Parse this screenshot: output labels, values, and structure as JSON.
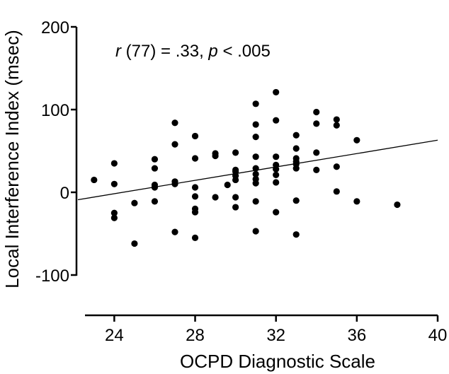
{
  "chart_data": {
    "type": "scatter",
    "title": "",
    "xlabel": "OCPD Diagnostic Scale",
    "ylabel": "Local Interference Index (msec)",
    "xlim": [
      22.2,
      40
    ],
    "ylim": [
      -100,
      200
    ],
    "x_ticks": [
      24,
      28,
      32,
      36,
      40
    ],
    "y_ticks": [
      -100,
      0,
      100,
      200
    ],
    "grid": false,
    "legend": "none",
    "annotation": {
      "r": "r",
      "df": "(77) = .33, ",
      "p": "p",
      "rest": " < .005"
    },
    "trend_line": {
      "x": [
        22.2,
        40
      ],
      "y": [
        -9,
        63
      ]
    },
    "marker_color": "#000000",
    "series": [
      {
        "x": [
          23,
          24,
          24,
          24,
          24,
          25,
          25,
          26,
          26,
          26,
          26,
          26,
          27,
          27,
          27,
          27,
          27,
          28,
          28,
          28,
          28,
          28,
          28,
          28,
          29,
          29,
          29,
          29.6,
          30,
          30,
          30,
          30,
          30,
          30,
          30,
          31,
          31,
          31,
          31,
          31,
          31,
          31,
          31,
          31,
          31,
          32,
          32,
          32,
          32,
          32,
          32,
          32,
          32,
          33,
          33,
          33,
          33,
          33,
          33,
          33,
          33,
          34,
          34,
          34,
          34,
          35,
          35,
          35,
          35,
          36,
          36,
          38
        ],
        "y": [
          15,
          35,
          10,
          -25,
          -31,
          -13,
          -62,
          40,
          29,
          9,
          6,
          -11,
          84,
          58,
          13,
          10,
          -48,
          68,
          41,
          6,
          -5,
          -20,
          -24,
          -55,
          47,
          44,
          -6,
          9,
          48,
          27,
          20,
          15,
          -6,
          -18,
          25,
          107,
          82,
          67,
          43,
          29,
          22,
          16,
          11,
          -11,
          -47,
          121,
          87,
          43,
          33,
          28,
          21,
          12,
          -24,
          69,
          53,
          41,
          37,
          34,
          29,
          -10,
          -51,
          97,
          83,
          48,
          27,
          88,
          81,
          31,
          1,
          63,
          -11,
          -15
        ]
      }
    ]
  }
}
